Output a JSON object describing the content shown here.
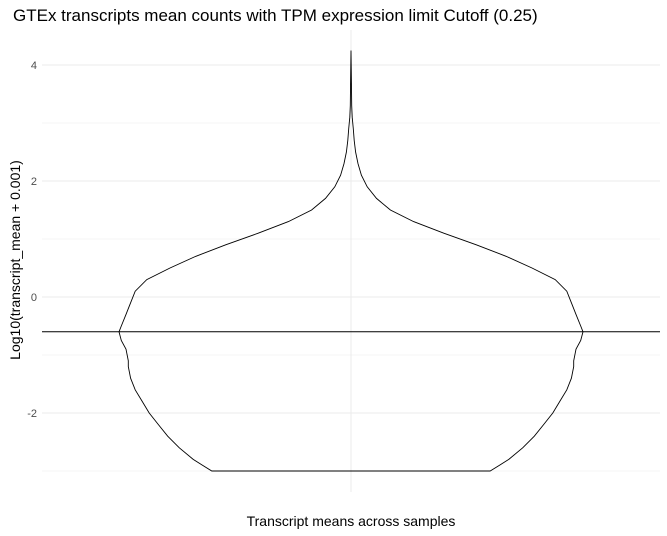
{
  "chart_data": {
    "type": "violin",
    "title": "GTEx transcripts mean counts with TPM expression limit Cutoff (0.25)",
    "xlabel": "Transcript means across samples",
    "ylabel": "Log10(transcript_mean + 0.001)",
    "ylim": [
      -3.3,
      4.3
    ],
    "y_ticks": [
      -2,
      0,
      2,
      4
    ],
    "y_tick_labels": [
      "-2",
      "0",
      "2",
      "4"
    ],
    "grid": true,
    "legend": "none",
    "cutoff_line": {
      "y": -0.6
    },
    "violin": {
      "density_profile": [
        {
          "y": -3.0,
          "w": 0.6
        },
        {
          "y": -2.9,
          "w": 0.64
        },
        {
          "y": -2.8,
          "w": 0.68
        },
        {
          "y": -2.6,
          "w": 0.74
        },
        {
          "y": -2.4,
          "w": 0.79
        },
        {
          "y": -2.2,
          "w": 0.83
        },
        {
          "y": -2.0,
          "w": 0.87
        },
        {
          "y": -1.8,
          "w": 0.9
        },
        {
          "y": -1.6,
          "w": 0.93
        },
        {
          "y": -1.4,
          "w": 0.95
        },
        {
          "y": -1.2,
          "w": 0.96
        },
        {
          "y": -1.1,
          "w": 0.96
        },
        {
          "y": -0.9,
          "w": 0.97
        },
        {
          "y": -0.75,
          "w": 0.99
        },
        {
          "y": -0.6,
          "w": 1.0
        },
        {
          "y": -0.5,
          "w": 0.99
        },
        {
          "y": -0.3,
          "w": 0.97
        },
        {
          "y": -0.1,
          "w": 0.95
        },
        {
          "y": 0.1,
          "w": 0.93
        },
        {
          "y": 0.3,
          "w": 0.88
        },
        {
          "y": 0.5,
          "w": 0.78
        },
        {
          "y": 0.7,
          "w": 0.67
        },
        {
          "y": 0.9,
          "w": 0.54
        },
        {
          "y": 1.1,
          "w": 0.4
        },
        {
          "y": 1.3,
          "w": 0.27
        },
        {
          "y": 1.5,
          "w": 0.17
        },
        {
          "y": 1.7,
          "w": 0.11
        },
        {
          "y": 1.9,
          "w": 0.07
        },
        {
          "y": 2.1,
          "w": 0.045
        },
        {
          "y": 2.3,
          "w": 0.03
        },
        {
          "y": 2.5,
          "w": 0.02
        },
        {
          "y": 2.7,
          "w": 0.014
        },
        {
          "y": 2.9,
          "w": 0.01
        },
        {
          "y": 3.1,
          "w": 0.005
        },
        {
          "y": 3.3,
          "w": 0.003
        },
        {
          "y": 3.6,
          "w": 0.002
        },
        {
          "y": 4.0,
          "w": 0.001
        },
        {
          "y": 4.25,
          "w": 0.0
        }
      ]
    },
    "colors": {
      "outline": "#000000",
      "grid": "#ebebeb",
      "cutoff": "#000000"
    }
  }
}
